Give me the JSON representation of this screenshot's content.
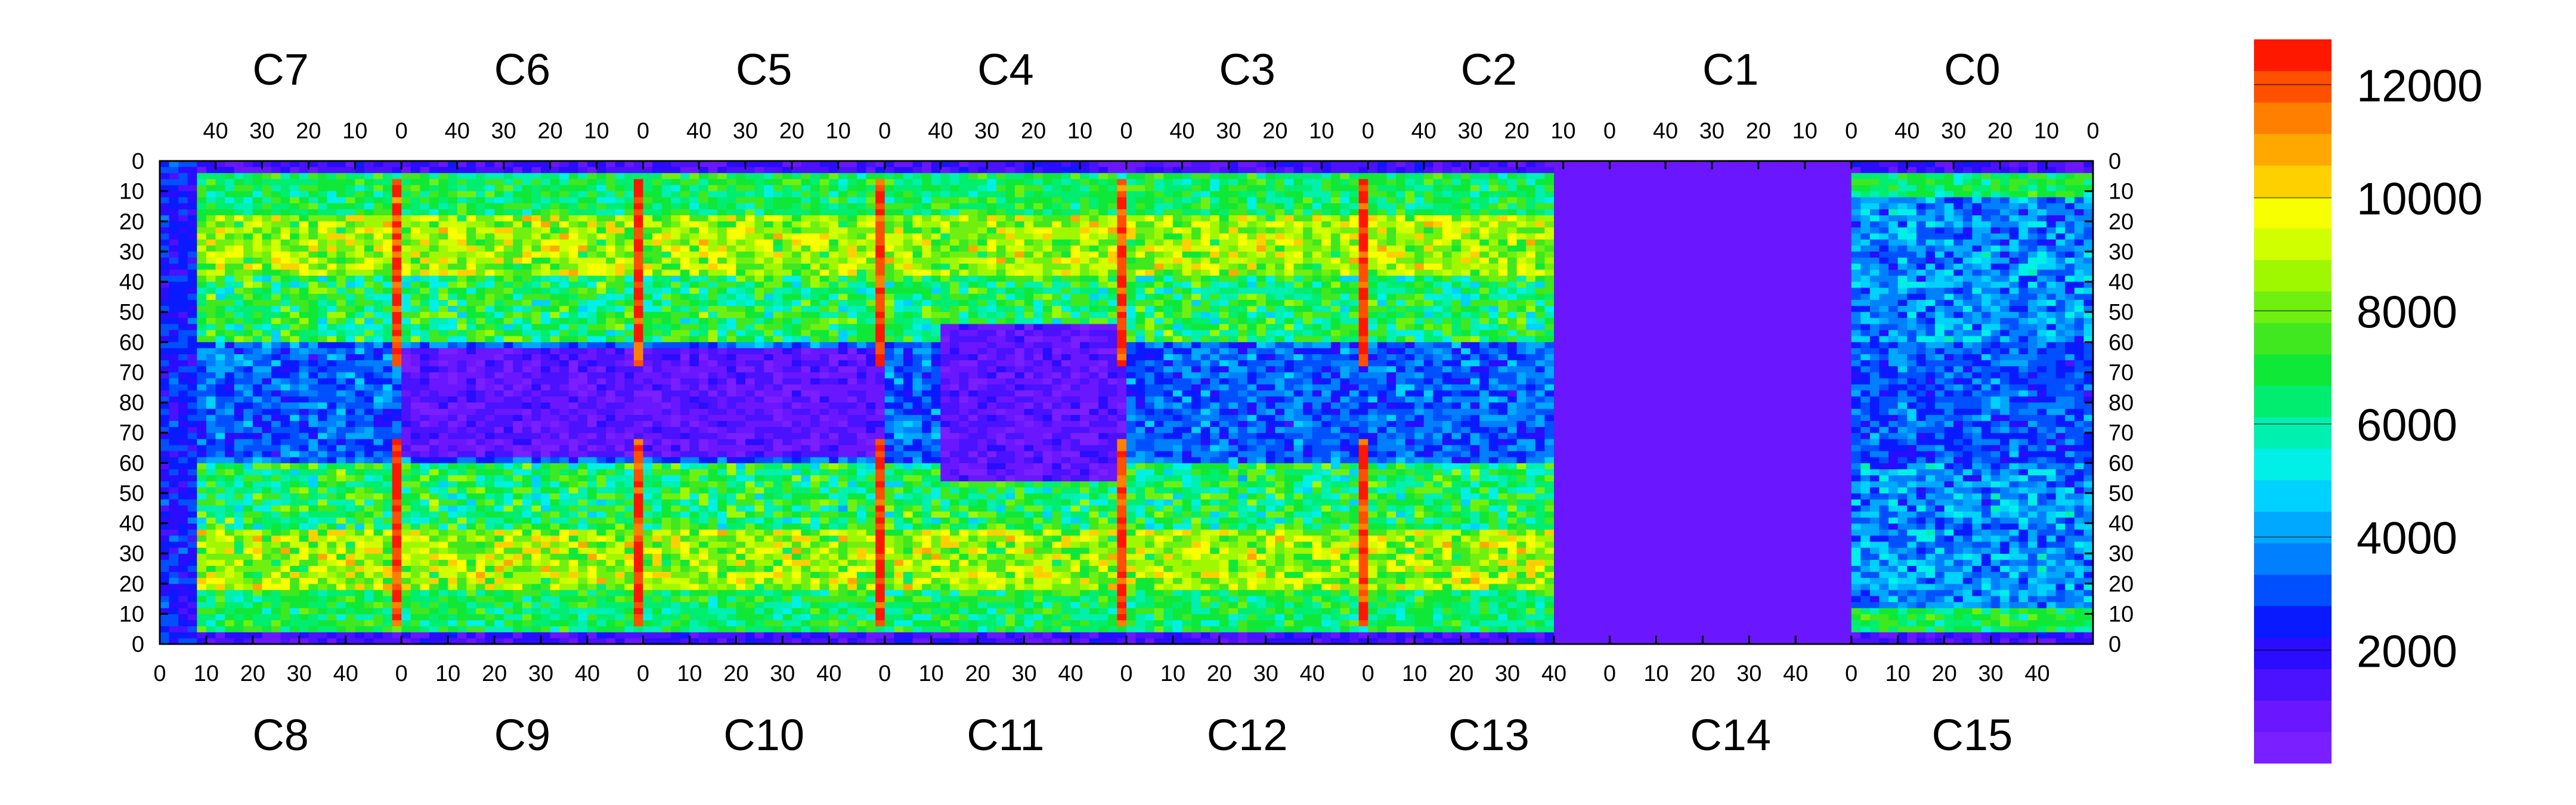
{
  "chart_data": {
    "type": "heatmap",
    "description_units": "hit counts per channel",
    "top_chip_labels": [
      "C7",
      "C6",
      "C5",
      "C4",
      "C3",
      "C2",
      "C1",
      "C0"
    ],
    "bottom_chip_labels": [
      "C8",
      "C9",
      "C10",
      "C11",
      "C12",
      "C13",
      "C14",
      "C15"
    ],
    "top_x_tick_labels": [
      "40",
      "30",
      "20",
      "10",
      "0"
    ],
    "bottom_x_tick_labels": [
      "0",
      "10",
      "20",
      "30",
      "40"
    ],
    "left_y_tick_labels": [
      "0",
      "10",
      "20",
      "30",
      "40",
      "50",
      "60",
      "70",
      "80",
      "70",
      "60",
      "50",
      "40",
      "30",
      "20",
      "10",
      "0"
    ],
    "right_y_tick_labels": [
      "0",
      "10",
      "20",
      "30",
      "40",
      "50",
      "60",
      "70",
      "80",
      "70",
      "60",
      "50",
      "40",
      "30",
      "20",
      "10",
      "0"
    ],
    "colorbar": {
      "range": [
        0,
        12800
      ],
      "tick_labels": [
        "2000",
        "4000",
        "6000",
        "8000",
        "10000",
        "12000"
      ],
      "tick_values": [
        2000,
        4000,
        6000,
        8000,
        10000,
        12000
      ],
      "colors": [
        "#7a1fff",
        "#6a17ff",
        "#4a12ff",
        "#2a0cff",
        "#0a1aff",
        "#0050ff",
        "#0080ff",
        "#00a8ff",
        "#00d2ff",
        "#00f0e8",
        "#00f0b0",
        "#00ee70",
        "#10e838",
        "#40e820",
        "#70f010",
        "#a0f800",
        "#d0ff00",
        "#f8ff00",
        "#ffd000",
        "#ffa800",
        "#ff8000",
        "#ff5000",
        "#ff1800"
      ]
    },
    "chips_per_row": 8,
    "columns_per_chip": 52,
    "rows_per_half": 80,
    "grid": false
  }
}
